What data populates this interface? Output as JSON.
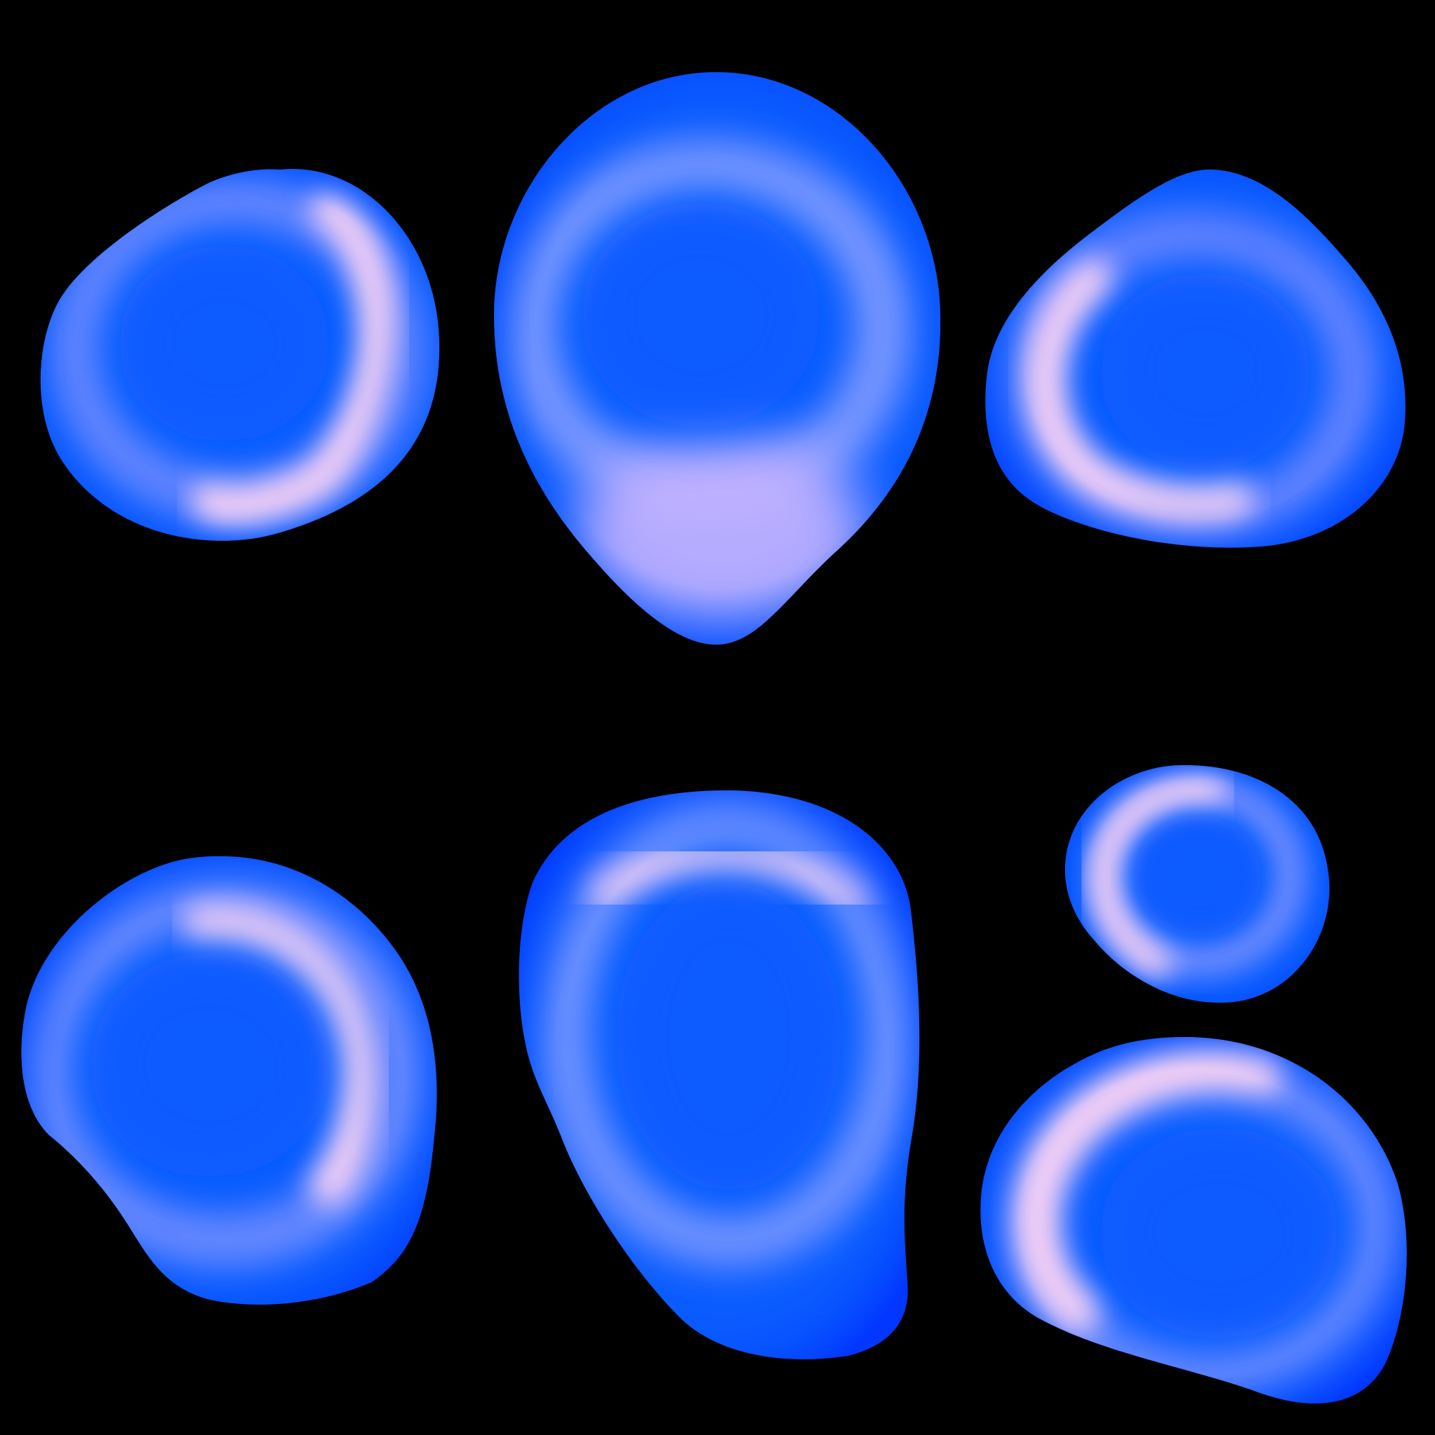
{
  "scene": {
    "background_color": "#000000",
    "subject": "blue-glossy-blobs",
    "blob_count": 7,
    "palette": {
      "base_blue": "#0a5cff",
      "rim_blue": "#0033ff",
      "glow_lavender": "#c8b4ff",
      "highlight_pink": "#ffd6f4"
    },
    "blobs": [
      {
        "id": "blob-top-left"
      },
      {
        "id": "blob-top-center"
      },
      {
        "id": "blob-top-right"
      },
      {
        "id": "blob-bottom-left"
      },
      {
        "id": "blob-bottom-center"
      },
      {
        "id": "blob-bottom-right-small"
      },
      {
        "id": "blob-bottom-right-large"
      }
    ]
  }
}
